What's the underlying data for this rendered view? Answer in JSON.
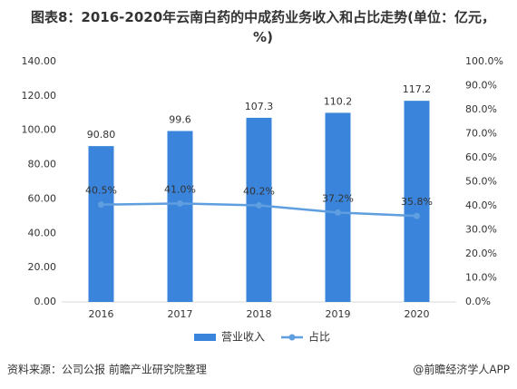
{
  "chart_data": {
    "type": "bar",
    "title": "图表8：2016-2020年云南白药的中成药业务收入和占比走势(单位：亿元，%)",
    "categories": [
      "2016",
      "2017",
      "2018",
      "2019",
      "2020"
    ],
    "series": [
      {
        "name": "营业收入",
        "type": "bar",
        "color": "#3a84dc",
        "values": [
          90.8,
          99.6,
          107.3,
          110.2,
          117.2
        ],
        "value_labels": [
          "90.80",
          "99.6",
          "107.3",
          "110.2",
          "117.2"
        ]
      },
      {
        "name": "占比",
        "type": "line",
        "axis": "y2",
        "color": "#5f9edf",
        "values": [
          40.5,
          41.0,
          40.2,
          37.2,
          35.8
        ],
        "value_labels": [
          "40.5%",
          "41.0%",
          "40.2%",
          "37.2%",
          "35.8%"
        ]
      }
    ],
    "ylim": [
      0,
      140
    ],
    "yticks": [
      {
        "value": 0,
        "label": "0.00"
      },
      {
        "value": 20,
        "label": "20.00"
      },
      {
        "value": 40,
        "label": "40.00"
      },
      {
        "value": 60,
        "label": "60.00"
      },
      {
        "value": 80,
        "label": "80.00"
      },
      {
        "value": 100,
        "label": "100.00"
      },
      {
        "value": 120,
        "label": "120.00"
      },
      {
        "value": 140,
        "label": "140.00"
      }
    ],
    "y2lim": [
      0,
      100
    ],
    "y2ticks": [
      {
        "value": 0,
        "label": "0.0%"
      },
      {
        "value": 10,
        "label": "10.0%"
      },
      {
        "value": 20,
        "label": "20.0%"
      },
      {
        "value": 30,
        "label": "30.0%"
      },
      {
        "value": 40,
        "label": "40.0%"
      },
      {
        "value": 50,
        "label": "50.0%"
      },
      {
        "value": 60,
        "label": "60.0%"
      },
      {
        "value": 70,
        "label": "70.0%"
      },
      {
        "value": 80,
        "label": "80.0%"
      },
      {
        "value": 90,
        "label": "90.0%"
      },
      {
        "value": 100,
        "label": "100.0%"
      }
    ],
    "legend": "bottom",
    "source": "资料来源：公司公报 前瞻产业研究院整理",
    "credit": "@前瞻经济学人APP"
  }
}
